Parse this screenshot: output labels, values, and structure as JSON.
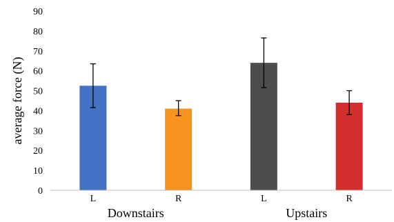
{
  "chart_data": {
    "type": "bar",
    "title": "",
    "xlabel": "",
    "ylabel": "average force (N)",
    "ylim": [
      0,
      90
    ],
    "yticks": [
      0,
      10,
      20,
      30,
      40,
      50,
      60,
      70,
      80,
      90
    ],
    "grid": false,
    "legend": "none",
    "categories": [
      "L",
      "R",
      "L",
      "R"
    ],
    "groups": [
      {
        "label": "Downstairs",
        "categories": [
          0,
          1
        ]
      },
      {
        "label": "Upstairs",
        "categories": [
          2,
          3
        ]
      }
    ],
    "values": [
      52.5,
      41.0,
      64.0,
      44.0
    ],
    "error": [
      [
        41.5,
        63.5
      ],
      [
        37.5,
        45.0
      ],
      [
        51.5,
        76.5
      ],
      [
        38.0,
        50.0
      ]
    ],
    "colors": [
      "#4472c4",
      "#f7941d",
      "#4d4d4d",
      "#d32f2f"
    ]
  }
}
